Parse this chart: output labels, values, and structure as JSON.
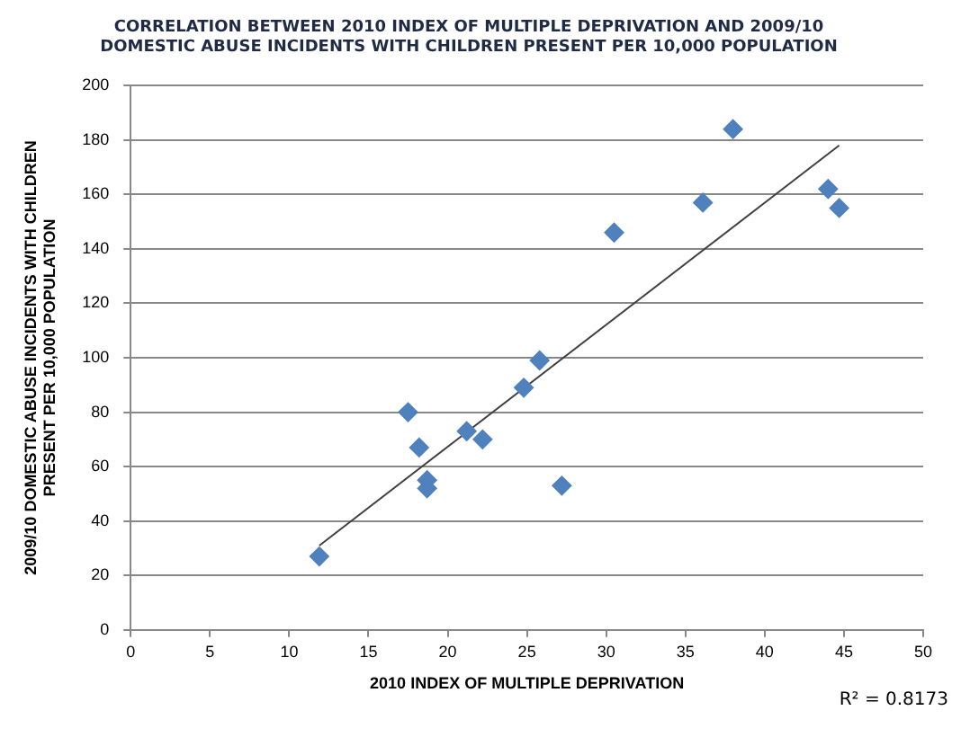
{
  "chart_data": {
    "type": "scatter",
    "title": "CORRELATION BETWEEN 2010 INDEX OF MULTIPLE DEPRIVATION AND 2009/10 DOMESTIC ABUSE INCIDENTS WITH CHILDREN PRESENT PER 10,000 POPULATION",
    "xlabel": "2010 INDEX OF MULTIPLE DEPRIVATION",
    "ylabel": "2009/10 DOMESTIC ABUSE INCIDENTS WITH CHILDREN PRESENT PER 10,000 POPULATION",
    "annotations": [
      "R² = 0.8173"
    ],
    "marker": "diamond",
    "grid": "y",
    "legend": false,
    "xlim": [
      0,
      50
    ],
    "xticks": [
      0,
      5,
      10,
      15,
      20,
      25,
      30,
      35,
      40,
      45,
      50
    ],
    "ylim": [
      0,
      200
    ],
    "yticks": [
      0,
      20,
      40,
      60,
      80,
      100,
      120,
      140,
      160,
      180,
      200
    ],
    "series": [
      {
        "type": "scatter",
        "color": "#4f81bd",
        "x": [
          11.9,
          17.5,
          18.2,
          18.7,
          18.7,
          21.2,
          22.2,
          24.8,
          25.8,
          27.2,
          30.5,
          36.1,
          38,
          44,
          44.7
        ],
        "values": [
          27,
          80,
          67,
          55,
          52,
          73,
          70,
          89,
          99,
          53,
          146,
          157,
          184,
          162,
          155
        ]
      },
      {
        "type": "line",
        "marker": "none",
        "color": "#404040",
        "x": [
          11.9,
          44.7
        ],
        "values": [
          31,
          178
        ]
      }
    ]
  }
}
